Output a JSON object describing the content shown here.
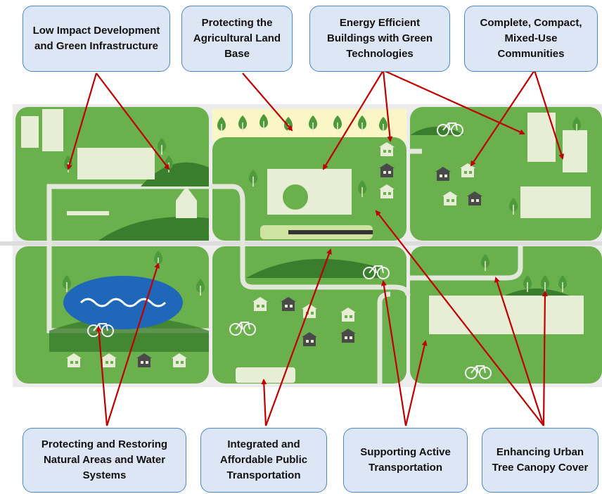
{
  "boxes": [
    {
      "label": "Low Impact Development and Green Infrastructure"
    },
    {
      "label": "Protecting the Agricultural Land Base"
    },
    {
      "label": "Energy Efficient Buildings with Green Technologies"
    },
    {
      "label": "Complete, Compact, Mixed-Use Communities"
    },
    {
      "label": "Protecting and Restoring Natural Areas and Water Systems"
    },
    {
      "label": "Integrated and Affordable Public Transportation"
    },
    {
      "label": "Supporting Active Transportation"
    },
    {
      "label": "Enhancing Urban Tree Canopy Cover"
    }
  ]
}
